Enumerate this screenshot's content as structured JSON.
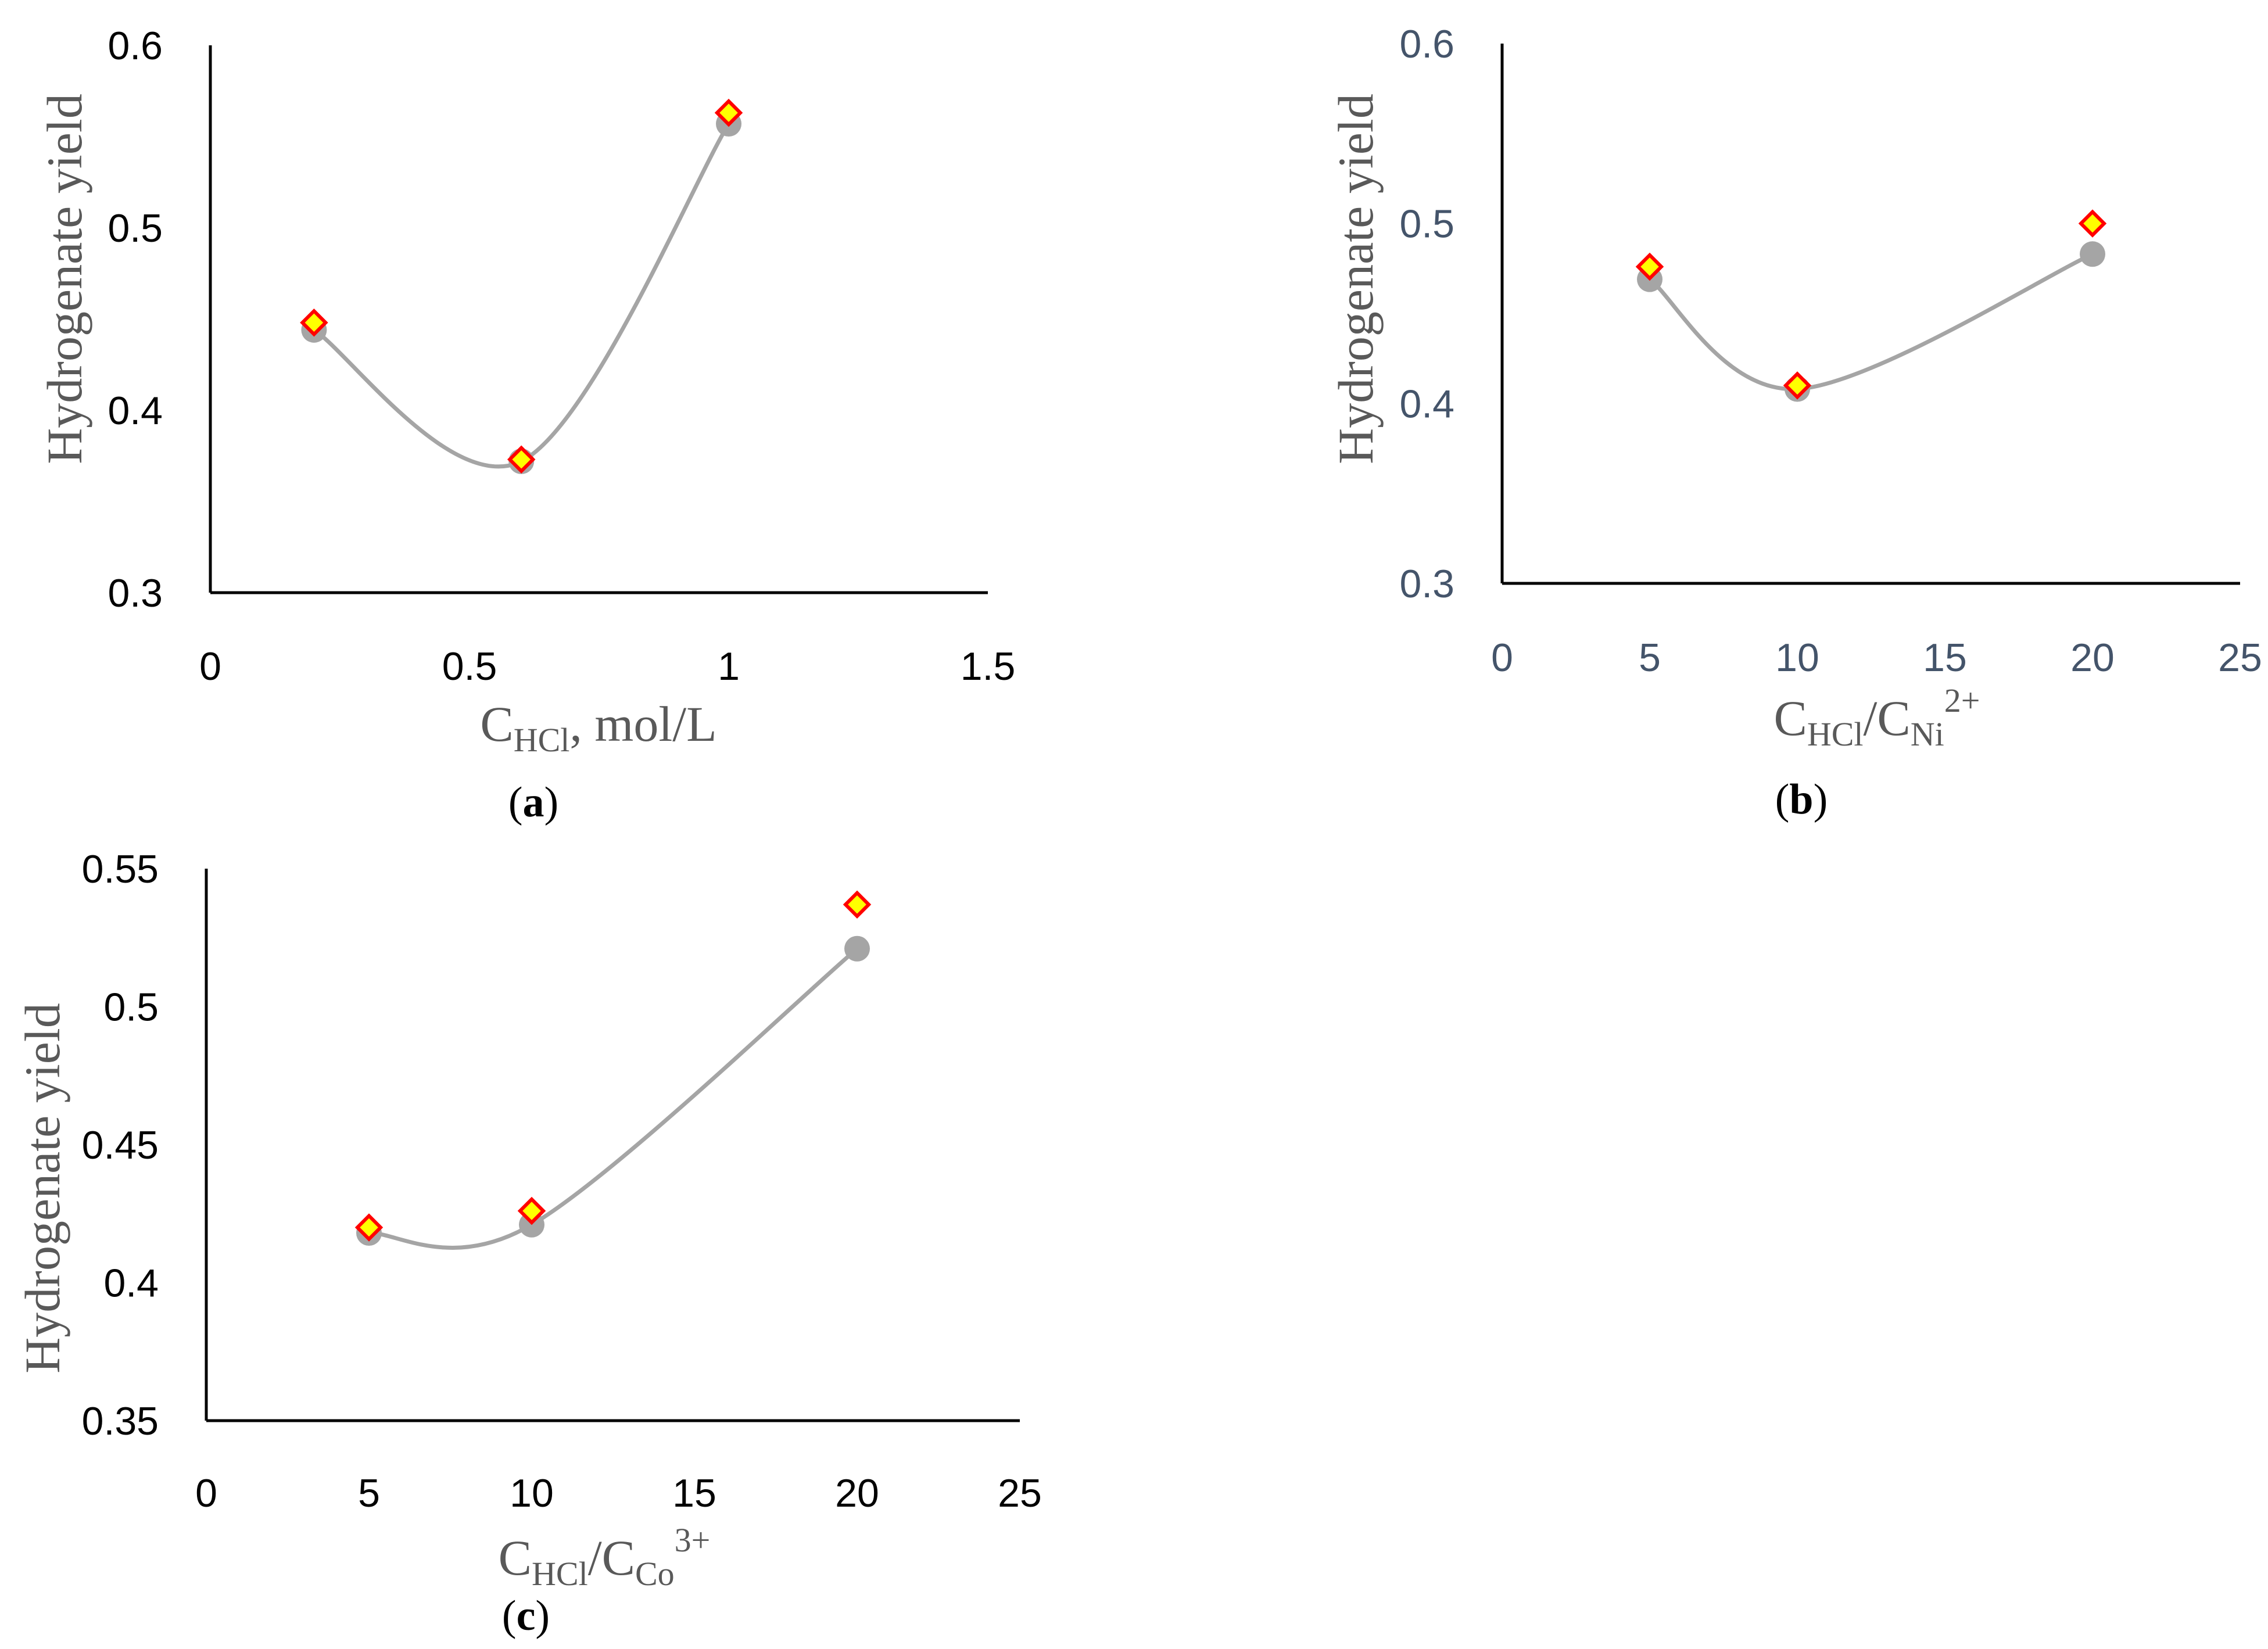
{
  "chart_data": [
    {
      "id": "a",
      "type": "scatter",
      "panel_label": "a",
      "ylabel": "Hydrogenate yield",
      "xlabel": {
        "base": "C",
        "sub1": "HCl",
        "rest": ", mol/L"
      },
      "xlim": [
        0,
        1.5
      ],
      "ylim": [
        0.3,
        0.6
      ],
      "xticks": [
        0,
        0.5,
        1,
        1.5
      ],
      "xtick_labels": [
        "0",
        "0.5",
        "1",
        "1.5"
      ],
      "yticks": [
        0.3,
        0.4,
        0.5,
        0.6
      ],
      "ytick_labels": [
        "0.3",
        "0.4",
        "0.5",
        "0.6"
      ],
      "grid": false,
      "series": [
        {
          "marker": "circle",
          "color": "#a5a5a5",
          "smooth_line": true,
          "x": [
            0.2,
            0.6,
            1.0
          ],
          "y": [
            0.444,
            0.372,
            0.557
          ]
        },
        {
          "marker": "diamond",
          "color": "#ffff00",
          "edge": "#ff0000",
          "x": [
            0.2,
            0.6,
            1.0
          ],
          "y": [
            0.448,
            0.373,
            0.563
          ]
        }
      ]
    },
    {
      "id": "b",
      "type": "scatter",
      "panel_label": "b",
      "ylabel": "Hydrogenate yield",
      "xlabel": {
        "base": "C",
        "sub1": "HCl",
        "mid": "/C",
        "sub2": "Ni",
        "sup": "2+"
      },
      "xlim": [
        0,
        25
      ],
      "ylim": [
        0.3,
        0.6
      ],
      "xticks": [
        0,
        5,
        10,
        15,
        20,
        25
      ],
      "xtick_labels": [
        "0",
        "5",
        "10",
        "15",
        "20",
        "25"
      ],
      "yticks": [
        0.3,
        0.4,
        0.5,
        0.6
      ],
      "ytick_labels": [
        "0.3",
        "0.4",
        "0.5",
        "0.6"
      ],
      "grid": false,
      "series": [
        {
          "marker": "circle",
          "color": "#a5a5a5",
          "smooth_line": true,
          "x": [
            5,
            10,
            20
          ],
          "y": [
            0.469,
            0.408,
            0.483
          ]
        },
        {
          "marker": "diamond",
          "color": "#ffff00",
          "edge": "#ff0000",
          "x": [
            5,
            10,
            20
          ],
          "y": [
            0.476,
            0.41,
            0.5
          ]
        }
      ]
    },
    {
      "id": "c",
      "type": "scatter",
      "panel_label": "c",
      "ylabel": "Hydrogenate yield",
      "xlabel": {
        "base": "C",
        "sub1": "HCl",
        "mid": "/C",
        "sub2": "Co",
        "sup": "3+"
      },
      "xlim": [
        0,
        25
      ],
      "ylim": [
        0.35,
        0.55
      ],
      "xticks": [
        0,
        5,
        10,
        15,
        20,
        25
      ],
      "xtick_labels": [
        "0",
        "5",
        "10",
        "15",
        "20",
        "25"
      ],
      "yticks": [
        0.35,
        0.4,
        0.45,
        0.5,
        0.55
      ],
      "ytick_labels": [
        "0.35",
        "0.4",
        "0.45",
        "0.5",
        "0.55"
      ],
      "grid": false,
      "series": [
        {
          "marker": "circle",
          "color": "#a5a5a5",
          "smooth_line": true,
          "x": [
            5,
            10,
            20
          ],
          "y": [
            0.418,
            0.421,
            0.521
          ]
        },
        {
          "marker": "diamond",
          "color": "#ffff00",
          "edge": "#ff0000",
          "x": [
            5,
            10,
            20
          ],
          "y": [
            0.42,
            0.426,
            0.537
          ]
        }
      ]
    }
  ]
}
